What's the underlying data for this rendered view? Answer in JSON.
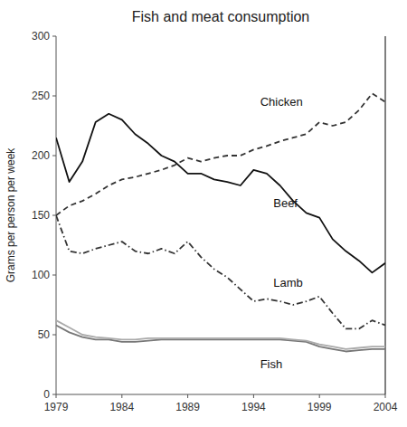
{
  "chart_data": {
    "type": "line",
    "title": "Fish and meat consumption",
    "y_label": "Grams per person per week",
    "x": [
      1979,
      1980,
      1981,
      1982,
      1983,
      1984,
      1985,
      1986,
      1987,
      1988,
      1989,
      1990,
      1991,
      1992,
      1993,
      1994,
      1995,
      1996,
      1997,
      1998,
      1999,
      2000,
      2001,
      2002,
      2003,
      2004
    ],
    "xlim": [
      1979,
      2004
    ],
    "xticks": [
      1979,
      1984,
      1989,
      1994,
      1999,
      2004
    ],
    "ylim": [
      0,
      300
    ],
    "yticks": [
      0,
      50,
      100,
      150,
      200,
      250,
      300
    ],
    "grid": false,
    "series": [
      {
        "color": "#111111",
        "line_style": "solid",
        "values": [
          215,
          178,
          195,
          228,
          235,
          230,
          218,
          210,
          200,
          195,
          185,
          185,
          180,
          178,
          175,
          188,
          185,
          175,
          162,
          152,
          148,
          130,
          120,
          112,
          102,
          110
        ]
      },
      {
        "color": "#333333",
        "line_style": "dashdot",
        "values": [
          150,
          120,
          118,
          122,
          125,
          128,
          120,
          118,
          122,
          118,
          128,
          115,
          105,
          98,
          88,
          78,
          80,
          78,
          75,
          78,
          82,
          68,
          55,
          55,
          62,
          58
        ]
      },
      {
        "color": "#333333",
        "line_style": "dashed",
        "values": [
          150,
          158,
          162,
          168,
          175,
          180,
          182,
          185,
          188,
          192,
          198,
          195,
          198,
          200,
          200,
          205,
          208,
          212,
          215,
          218,
          228,
          225,
          228,
          238,
          252,
          245
        ]
      },
      {
        "color": "#777777",
        "line_style": "solid",
        "values": [
          58,
          52,
          48,
          46,
          46,
          44,
          44,
          45,
          46,
          46,
          46,
          46,
          46,
          46,
          46,
          46,
          46,
          46,
          45,
          44,
          40,
          38,
          36,
          37,
          38,
          38
        ]
      },
      {
        "color": "#aaaaaa",
        "line_style": "solid",
        "values": [
          62,
          56,
          50,
          48,
          47,
          46,
          46,
          47,
          47,
          47,
          47,
          47,
          47,
          47,
          47,
          47,
          47,
          47,
          46,
          45,
          42,
          40,
          38,
          39,
          40,
          40
        ]
      }
    ],
    "annotations": [
      {
        "text": "Beef",
        "x": 1995.5,
        "y": 157
      },
      {
        "text": "Lamb",
        "x": 1995.5,
        "y": 90
      },
      {
        "text": "Chicken",
        "x": 1994.5,
        "y": 242
      },
      {
        "text": "Fish",
        "x": 1994.5,
        "y": 22
      }
    ]
  }
}
